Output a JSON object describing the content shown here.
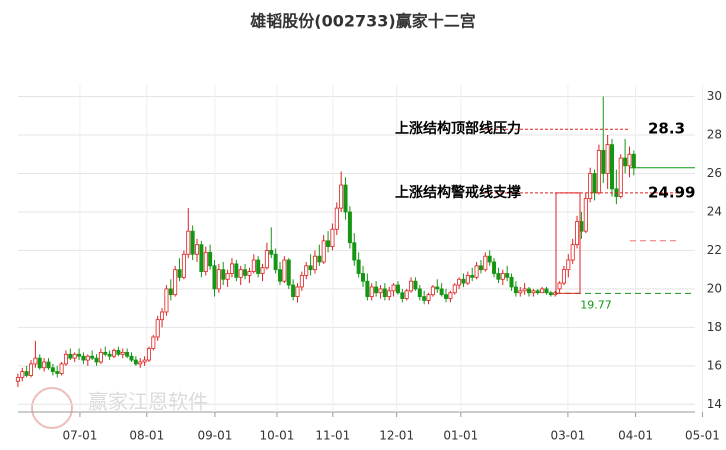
{
  "chart_data": {
    "type": "candlestick",
    "title": "雄韬股份(002733)赢家十二宫",
    "up_color": "#e02020",
    "down_color": "#159615",
    "xlim": [
      -4.1,
      155
    ],
    "ylim": [
      13.6,
      30.6
    ],
    "yticks": [
      14,
      16,
      18,
      20,
      22,
      24,
      26,
      28,
      30
    ],
    "xticks": [
      {
        "value": 14.2,
        "label": "07-01"
      },
      {
        "value": 29.5,
        "label": "08-01"
      },
      {
        "value": 45.1,
        "label": "09-01"
      },
      {
        "value": 59.3,
        "label": "10-01"
      },
      {
        "value": 72.1,
        "label": "11-01"
      },
      {
        "value": 86.7,
        "label": "12-01"
      },
      {
        "value": 101.4,
        "label": "01-01"
      },
      {
        "value": 125.9,
        "label": "03-01"
      },
      {
        "value": 141.4,
        "label": "04-01"
      },
      {
        "value": 156.7,
        "label": "05-01"
      }
    ],
    "grid": true,
    "candles": [
      [
        15.2,
        15.6,
        14.9,
        15.4
      ],
      [
        15.4,
        15.9,
        15.2,
        15.7
      ],
      [
        15.7,
        16.0,
        15.4,
        15.5
      ],
      [
        15.5,
        16.3,
        15.4,
        16.1
      ],
      [
        16.1,
        17.3,
        15.9,
        16.4
      ],
      [
        16.4,
        16.6,
        15.8,
        15.9
      ],
      [
        15.9,
        16.4,
        15.7,
        16.2
      ],
      [
        16.2,
        16.4,
        15.8,
        15.9
      ],
      [
        15.9,
        16.1,
        15.5,
        15.7
      ],
      [
        15.7,
        16.0,
        15.4,
        15.6
      ],
      [
        15.6,
        16.2,
        15.5,
        16.1
      ],
      [
        16.1,
        16.8,
        16.0,
        16.6
      ],
      [
        16.6,
        16.9,
        16.3,
        16.4
      ],
      [
        16.4,
        16.7,
        16.2,
        16.6
      ],
      [
        16.6,
        16.9,
        16.3,
        16.5
      ],
      [
        16.5,
        16.7,
        16.1,
        16.3
      ],
      [
        16.3,
        16.6,
        16.0,
        16.5
      ],
      [
        16.5,
        16.8,
        16.3,
        16.4
      ],
      [
        16.4,
        16.6,
        16.0,
        16.2
      ],
      [
        16.2,
        16.9,
        16.1,
        16.7
      ],
      [
        16.7,
        17.0,
        16.5,
        16.6
      ],
      [
        16.6,
        16.8,
        16.3,
        16.5
      ],
      [
        16.5,
        16.9,
        16.4,
        16.8
      ],
      [
        16.8,
        17.0,
        16.5,
        16.6
      ],
      [
        16.6,
        16.9,
        16.4,
        16.7
      ],
      [
        16.7,
        16.9,
        16.4,
        16.5
      ],
      [
        16.5,
        16.7,
        16.2,
        16.3
      ],
      [
        16.3,
        16.5,
        16.0,
        16.1
      ],
      [
        16.1,
        16.4,
        15.9,
        16.2
      ],
      [
        16.2,
        16.5,
        16.0,
        16.3
      ],
      [
        16.3,
        17.0,
        16.2,
        16.9
      ],
      [
        16.9,
        17.6,
        16.8,
        17.5
      ],
      [
        17.5,
        18.6,
        17.3,
        18.4
      ],
      [
        18.4,
        19.0,
        18.0,
        18.8
      ],
      [
        18.8,
        20.2,
        18.6,
        20.0
      ],
      [
        20.0,
        20.5,
        19.4,
        19.7
      ],
      [
        19.7,
        21.2,
        19.6,
        21.0
      ],
      [
        21.0,
        21.6,
        20.4,
        20.6
      ],
      [
        20.6,
        22.0,
        20.5,
        21.8
      ],
      [
        21.8,
        24.2,
        21.6,
        23.0
      ],
      [
        23.0,
        23.3,
        21.5,
        21.8
      ],
      [
        21.8,
        22.6,
        21.4,
        22.3
      ],
      [
        22.3,
        22.5,
        20.6,
        20.9
      ],
      [
        20.9,
        22.2,
        20.7,
        21.9
      ],
      [
        21.9,
        22.3,
        21.0,
        21.2
      ],
      [
        21.2,
        21.5,
        19.6,
        20.0
      ],
      [
        20.0,
        21.3,
        19.8,
        21.0
      ],
      [
        21.0,
        21.4,
        20.2,
        20.5
      ],
      [
        20.5,
        21.0,
        20.1,
        20.8
      ],
      [
        20.8,
        21.6,
        20.6,
        21.3
      ],
      [
        21.3,
        21.5,
        20.4,
        20.6
      ],
      [
        20.6,
        21.2,
        20.2,
        21.0
      ],
      [
        21.0,
        21.3,
        20.5,
        20.7
      ],
      [
        20.7,
        21.1,
        20.3,
        20.9
      ],
      [
        20.9,
        21.8,
        20.8,
        21.5
      ],
      [
        21.5,
        21.7,
        20.6,
        20.8
      ],
      [
        20.8,
        21.3,
        20.4,
        21.1
      ],
      [
        21.1,
        22.4,
        21.0,
        22.0
      ],
      [
        22.0,
        23.2,
        21.6,
        21.8
      ],
      [
        21.8,
        22.1,
        20.8,
        21.0
      ],
      [
        21.0,
        21.4,
        20.2,
        20.4
      ],
      [
        20.4,
        21.7,
        20.3,
        21.5
      ],
      [
        21.5,
        21.6,
        20.0,
        20.2
      ],
      [
        20.2,
        20.5,
        19.4,
        19.6
      ],
      [
        19.6,
        20.3,
        19.3,
        20.1
      ],
      [
        20.1,
        20.9,
        19.9,
        20.7
      ],
      [
        20.7,
        21.4,
        20.5,
        21.2
      ],
      [
        21.2,
        21.8,
        20.7,
        21.0
      ],
      [
        21.0,
        22.0,
        20.8,
        21.7
      ],
      [
        21.7,
        22.3,
        21.2,
        21.4
      ],
      [
        21.4,
        22.8,
        21.3,
        22.5
      ],
      [
        22.5,
        23.0,
        21.9,
        22.2
      ],
      [
        22.2,
        23.4,
        22.0,
        23.1
      ],
      [
        23.1,
        24.5,
        22.8,
        24.2
      ],
      [
        24.2,
        26.1,
        24.0,
        25.4
      ],
      [
        25.4,
        25.8,
        23.6,
        24.0
      ],
      [
        24.0,
        24.3,
        22.1,
        22.4
      ],
      [
        22.4,
        22.9,
        21.2,
        21.5
      ],
      [
        21.5,
        21.9,
        20.6,
        20.8
      ],
      [
        20.8,
        21.2,
        20.1,
        20.4
      ],
      [
        20.4,
        20.8,
        19.4,
        19.6
      ],
      [
        19.6,
        20.3,
        19.4,
        20.1
      ],
      [
        20.1,
        20.4,
        19.6,
        19.8
      ],
      [
        19.8,
        20.2,
        19.5,
        20.0
      ],
      [
        20.0,
        20.3,
        19.4,
        19.6
      ],
      [
        19.6,
        20.1,
        19.4,
        19.9
      ],
      [
        19.9,
        20.3,
        19.6,
        20.2
      ],
      [
        20.2,
        20.4,
        19.7,
        19.8
      ],
      [
        19.8,
        20.0,
        19.3,
        19.5
      ],
      [
        19.5,
        20.0,
        19.4,
        19.9
      ],
      [
        19.9,
        20.6,
        19.8,
        20.4
      ],
      [
        20.4,
        20.6,
        19.9,
        20.0
      ],
      [
        20.0,
        20.2,
        19.4,
        19.6
      ],
      [
        19.6,
        19.9,
        19.2,
        19.4
      ],
      [
        19.4,
        19.8,
        19.2,
        19.7
      ],
      [
        19.7,
        20.2,
        19.6,
        20.1
      ],
      [
        20.1,
        20.5,
        19.8,
        20.0
      ],
      [
        20.0,
        20.3,
        19.6,
        19.7
      ],
      [
        19.7,
        20.0,
        19.3,
        19.5
      ],
      [
        19.5,
        19.9,
        19.3,
        19.8
      ],
      [
        19.8,
        20.3,
        19.7,
        20.2
      ],
      [
        20.2,
        20.6,
        20.0,
        20.5
      ],
      [
        20.5,
        20.8,
        20.1,
        20.3
      ],
      [
        20.3,
        20.9,
        20.2,
        20.7
      ],
      [
        20.7,
        21.1,
        20.4,
        20.6
      ],
      [
        20.6,
        21.4,
        20.5,
        21.2
      ],
      [
        21.2,
        21.5,
        20.8,
        21.0
      ],
      [
        21.0,
        21.9,
        20.9,
        21.7
      ],
      [
        21.7,
        22.0,
        21.2,
        21.4
      ],
      [
        21.4,
        21.6,
        20.6,
        20.8
      ],
      [
        20.8,
        21.1,
        20.3,
        20.5
      ],
      [
        20.5,
        21.0,
        20.2,
        20.8
      ],
      [
        20.8,
        21.2,
        20.4,
        20.6
      ],
      [
        20.6,
        20.8,
        19.9,
        20.1
      ],
      [
        20.1,
        20.4,
        19.6,
        19.8
      ],
      [
        19.8,
        20.1,
        19.6,
        19.9
      ],
      [
        19.9,
        20.3,
        19.7,
        20.0
      ],
      [
        20.0,
        20.1,
        19.6,
        19.8
      ],
      [
        19.8,
        20.0,
        19.6,
        19.9
      ],
      [
        19.9,
        20.0,
        19.7,
        19.8
      ],
      [
        19.8,
        20.1,
        19.8,
        20.0
      ],
      [
        20.0,
        20.1,
        19.7,
        19.8
      ],
      [
        19.8,
        19.9,
        19.6,
        19.7
      ],
      [
        19.7,
        19.9,
        19.6,
        19.8
      ],
      [
        20.0,
        20.4,
        19.8,
        20.3
      ],
      [
        20.3,
        21.2,
        20.2,
        21.0
      ],
      [
        21.0,
        21.8,
        20.6,
        21.5
      ],
      [
        21.5,
        22.6,
        21.3,
        22.3
      ],
      [
        22.3,
        23.8,
        22.1,
        23.5
      ],
      [
        23.5,
        24.0,
        22.6,
        23.0
      ],
      [
        23.0,
        25.0,
        22.9,
        24.7
      ],
      [
        24.7,
        26.3,
        24.5,
        26.0
      ],
      [
        26.0,
        26.2,
        24.6,
        25.0
      ],
      [
        25.0,
        27.5,
        24.9,
        27.2
      ],
      [
        27.2,
        30.0,
        25.5,
        26.0
      ],
      [
        26.0,
        28.0,
        25.2,
        27.5
      ],
      [
        27.5,
        27.8,
        24.8,
        25.2
      ],
      [
        25.2,
        26.2,
        24.4,
        24.8
      ],
      [
        24.8,
        27.0,
        24.7,
        26.8
      ],
      [
        26.8,
        27.8,
        26.0,
        26.4
      ],
      [
        26.4,
        27.4,
        25.8,
        27.0
      ],
      [
        27.0,
        27.2,
        25.9,
        26.3
      ]
    ],
    "resistance": {
      "label": "上涨结构顶部线压力",
      "value": 28.3
    },
    "support": {
      "label": "上涨结构警戒线支撑",
      "value": 24.99
    },
    "low": {
      "value": 19.77
    },
    "extra_lines": [
      {
        "value": 22.5,
        "color": "#f07070"
      },
      {
        "value": 26.3,
        "color": "#159615"
      }
    ],
    "watermark": "赢家江恩软件"
  }
}
